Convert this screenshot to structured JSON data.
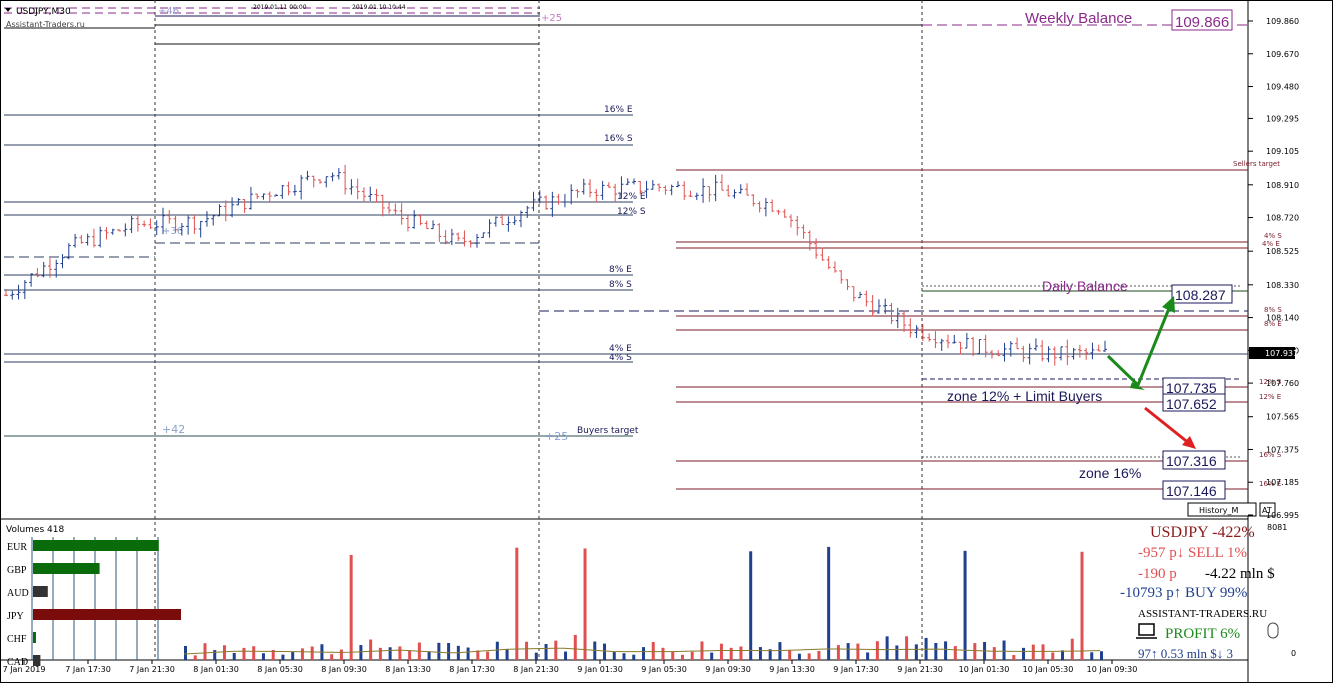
{
  "window": {
    "symbol_timeframe": "USDJPY,M30",
    "watermark": "Assistant-Traders.ru",
    "top_ruler": {
      "left_marker": "+46",
      "date1": "2019.01.11 00:00",
      "date2": "2019.01.10 10:44",
      "right_marker": "+25"
    }
  },
  "price_axis": {
    "ticks": [
      "109.860",
      "109.670",
      "109.480",
      "109.295",
      "109.105",
      "108.910",
      "108.720",
      "108.525",
      "108.330",
      "108.140",
      "107.950",
      "107.760",
      "107.565",
      "107.375",
      "107.185",
      "106.995"
    ],
    "current_price": "107.931"
  },
  "levels": {
    "weekly_balance_label": "Weekly Balance",
    "weekly_balance_value": "109.866",
    "daily_balance_label": "Daily Balance",
    "daily_balance_value": "108.287",
    "sellers_target": "Sellers target",
    "buyers_target": "Buyers target",
    "buyers_left_marker": "+42",
    "buyers_right_marker": "+25",
    "mid_marker": "+36",
    "left_block": [
      "16% E",
      "16% S",
      "12% E",
      "12% S",
      "8% E",
      "8% S",
      "4% E",
      "4% S"
    ],
    "right_block": [
      "4% S",
      "4% E",
      "8% S",
      "8% E",
      "12% S",
      "12% E",
      "16% S",
      "16% E"
    ],
    "zone12_label": "zone 12% + Limit Buyers",
    "zone12_values": [
      "107.735",
      "107.652"
    ],
    "zone16_label": "zone 16%",
    "zone16_values": [
      "107.316",
      "107.146"
    ],
    "history_button": "History_M",
    "at_button": "AT"
  },
  "time_axis": [
    "7 Jan 2019",
    "7 Jan 17:30",
    "7 Jan 21:30",
    "8 Jan 01:30",
    "8 Jan 05:30",
    "8 Jan 09:30",
    "8 Jan 13:30",
    "8 Jan 17:30",
    "8 Jan 21:30",
    "9 Jan 01:30",
    "9 Jan 05:30",
    "9 Jan 09:30",
    "9 Jan 13:30",
    "9 Jan 17:30",
    "9 Jan 21:30",
    "10 Jan 01:30",
    "10 Jan 05:30",
    "10 Jan 09:30"
  ],
  "volumes_panel": {
    "title": "Volumes 418",
    "axis_top": "8081",
    "axis_bottom": "0",
    "currencies": [
      {
        "name": "EUR",
        "strength": 0.85,
        "color": "#0a6b0a"
      },
      {
        "name": "GBP",
        "strength": 0.45,
        "color": "#0a6b0a"
      },
      {
        "name": "AUD",
        "strength": 0.1,
        "color": "#333333"
      },
      {
        "name": "JPY",
        "strength": 1.0,
        "color": "#7a0c0c"
      },
      {
        "name": "CHF",
        "strength": 0.02,
        "color": "#0a6b0a"
      },
      {
        "name": "CAD",
        "strength": 0.05,
        "color": "#333333"
      }
    ]
  },
  "stats": {
    "pair_line": "USDJPY -422%",
    "sell_line": "-957 p↓  SELL 1%",
    "money_line_a": "-190 p",
    "money_line_b": "-4.22 mln $",
    "buy_line": "-10793 p↑  BUY 99%",
    "site": "ASSISTANT-TRADERS.RU",
    "profit": "PROFIT 6%",
    "bottom_line": "97↑   0.53 mln $↓  3"
  },
  "colors": {
    "up_candle": "#1f3f8f",
    "down_candle": "#e05050",
    "level_dark": "#2b3f5f",
    "level_maroon": "#7a1d2a",
    "balance_purple": "#8a2a8a",
    "bull_arrow": "#1a8a1a",
    "bear_arrow": "#e02020"
  },
  "chart_data": {
    "type": "candlestick",
    "symbol": "USDJPY",
    "timeframe": "M30",
    "ylim": [
      106.995,
      109.86
    ],
    "x": [
      "7 Jan 2019",
      "7 Jan 17:30",
      "7 Jan 21:30",
      "8 Jan 01:30",
      "8 Jan 05:30",
      "8 Jan 09:30",
      "8 Jan 13:30",
      "8 Jan 17:30",
      "8 Jan 21:30",
      "9 Jan 01:30",
      "9 Jan 05:30",
      "9 Jan 09:30",
      "9 Jan 13:30",
      "9 Jan 17:30",
      "9 Jan 21:30",
      "10 Jan 01:30",
      "10 Jan 05:30",
      "10 Jan 09:30"
    ],
    "close": [
      108.27,
      108.55,
      108.68,
      108.7,
      108.86,
      108.98,
      108.74,
      108.57,
      108.77,
      108.88,
      108.9,
      108.88,
      108.78,
      108.3,
      108.08,
      107.97,
      107.93,
      107.93
    ],
    "volume_max": 8081,
    "volumes": [
      300,
      450,
      420,
      380,
      500,
      350,
      540,
      600,
      420,
      420,
      480,
      470,
      560,
      520,
      550,
      440,
      430,
      470
    ]
  }
}
